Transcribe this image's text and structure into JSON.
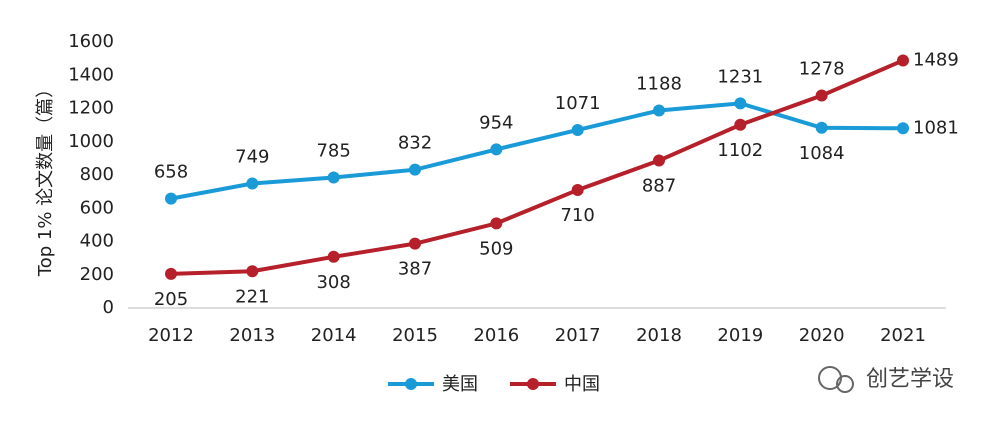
{
  "chart_data": {
    "type": "line",
    "y_label": "Top 1% 论文数量（篇）",
    "categories": [
      "2012",
      "2013",
      "2014",
      "2015",
      "2016",
      "2017",
      "2018",
      "2019",
      "2020",
      "2021"
    ],
    "series": [
      {
        "name": "美国",
        "color": "#1a9bd7",
        "values": [
          658,
          749,
          785,
          832,
          954,
          1071,
          1188,
          1231,
          1084,
          1081
        ]
      },
      {
        "name": "中国",
        "color": "#b5202a",
        "values": [
          205,
          221,
          308,
          387,
          509,
          710,
          887,
          1102,
          1278,
          1489
        ]
      }
    ],
    "ylim": [
      0,
      1600
    ],
    "yticks": [
      0,
      200,
      400,
      600,
      800,
      1000,
      1200,
      1400,
      1600
    ],
    "legend": "bottom"
  },
  "watermark": "创艺学设"
}
